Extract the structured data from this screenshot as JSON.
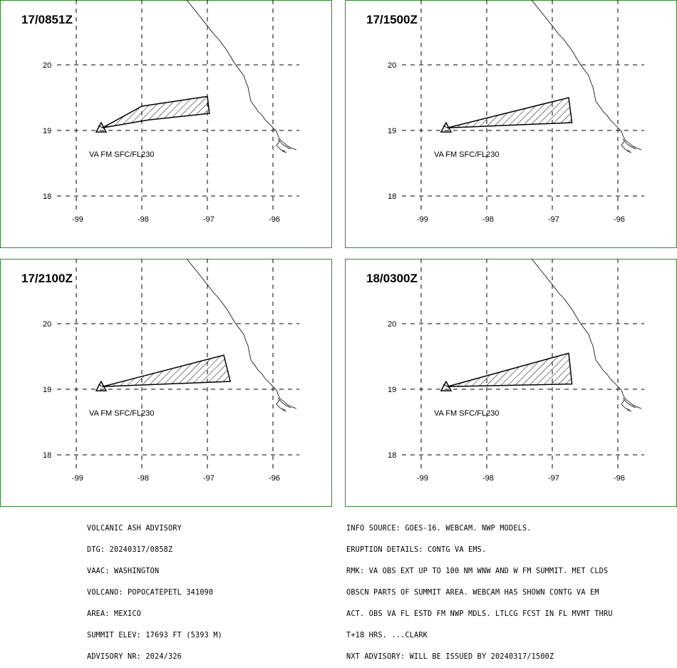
{
  "colors": {
    "border": "#2e8b2e",
    "lines": "#000000"
  },
  "panels": [
    {
      "time": "17/0851Z",
      "va_label": "VA FM SFC/FL230",
      "ash_polygon": [
        [
          -98.6,
          19.04
        ],
        [
          -98.0,
          19.37
        ],
        [
          -97.0,
          19.52
        ],
        [
          -96.97,
          19.26
        ],
        [
          -97.9,
          19.16
        ],
        [
          -98.6,
          19.04
        ]
      ]
    },
    {
      "time": "17/1500Z",
      "va_label": "VA FM SFC/FL230",
      "ash_polygon": [
        [
          -98.6,
          19.04
        ],
        [
          -96.75,
          19.5
        ],
        [
          -96.7,
          19.12
        ],
        [
          -98.6,
          19.04
        ]
      ]
    },
    {
      "time": "17/2100Z",
      "va_label": "VA FM SFC/FL230",
      "ash_polygon": [
        [
          -98.6,
          19.04
        ],
        [
          -96.75,
          19.52
        ],
        [
          -96.65,
          19.12
        ],
        [
          -98.6,
          19.04
        ]
      ]
    },
    {
      "time": "18/0300Z",
      "va_label": "VA FM SFC/FL230",
      "ash_polygon": [
        [
          -98.6,
          19.04
        ],
        [
          -96.75,
          19.55
        ],
        [
          -96.7,
          19.08
        ],
        [
          -98.6,
          19.04
        ]
      ]
    }
  ],
  "map": {
    "lat_ticks": [
      "20",
      "19",
      "18"
    ],
    "lon_ticks": [
      "-99",
      "-98",
      "-97",
      "-96"
    ],
    "volcano": {
      "lon": -98.62,
      "lat": 19.02
    }
  },
  "advisory_left": [
    "VOLCANIC ASH ADVISORY",
    "DTG: 20240317/0858Z",
    "VAAC: WASHINGTON",
    "VOLCANO: POPOCATEPETL 341090",
    "AREA: MEXICO",
    "SUMMIT ELEV: 17693 FT (5393 M)",
    "ADVISORY NR: 2024/326"
  ],
  "advisory_right": [
    "INFO SOURCE: GOES-16. WEBCAM. NWP MODELS.",
    "ERUPTION DETAILS: CONTG VA EMS.",
    "RMK: VA OBS EXT UP TO 100 NM WNW AND W FM SUMMIT. MET CLDS",
    "OBSCN PARTS OF SUMMIT AREA. WEBCAM HAS SHOWN CONTG VA EM",
    "ACT. OBS VA FL ESTD FM NWP MDLS. LTLCG FCST IN FL MVMT THRU",
    "T+18 HRS. ...CLARK",
    "NXT ADVISORY: WILL BE ISSUED BY 20240317/1500Z"
  ]
}
